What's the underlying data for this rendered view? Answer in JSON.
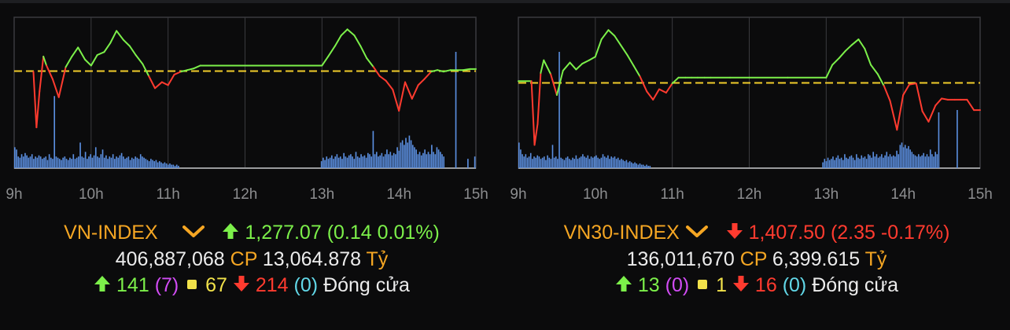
{
  "colors": {
    "up": "#7cf04a",
    "down": "#ff3b2f",
    "reference": "#f2cc2a",
    "volume": "#5b8fe0",
    "grid": "#3a3b3e",
    "name": "#f5a623"
  },
  "panels": [
    {
      "index_name": "VN-INDEX",
      "dropdown_icon": "chevron-down-icon",
      "change_direction": "up",
      "price": "1,277.07",
      "change": "(0.14 0.01%)",
      "volume": "406,887,068",
      "volume_unit": "CP",
      "value": "13,064.878",
      "value_unit": "Tỷ",
      "advancers": "141",
      "ceiling": "(7)",
      "unchanged": "67",
      "decliners": "214",
      "floor": "(0)",
      "status": "Đóng cửa"
    },
    {
      "index_name": "VN30-INDEX",
      "dropdown_icon": "chevron-down-icon",
      "change_direction": "down",
      "price": "1,407.50",
      "change": "(2.35 -0.17%)",
      "volume": "136,011,670",
      "volume_unit": "CP",
      "value": "6,399.615",
      "value_unit": "Tỷ",
      "advancers": "13",
      "ceiling": "(0)",
      "unchanged": "1",
      "decliners": "16",
      "floor": "(0)",
      "status": "Đóng cửa"
    }
  ],
  "chart_data": [
    {
      "type": "line",
      "x_ticks": [
        "9h",
        "10h",
        "11h",
        "12h",
        "13h",
        "14h",
        "15h"
      ],
      "xlim": [
        9,
        15
      ],
      "ylim": [
        1270.5,
        1280.5
      ],
      "reference": 1276.93,
      "grid": true,
      "series": [
        {
          "x": [
            9.25,
            9.29,
            9.33,
            9.38,
            9.42,
            9.5,
            9.58,
            9.67,
            9.75,
            9.83,
            9.92,
            10.0,
            10.08,
            10.17,
            10.25,
            10.33,
            10.42,
            10.5,
            10.58,
            10.67,
            10.75,
            10.83,
            10.92,
            11.0,
            11.08,
            11.17,
            11.25,
            11.33,
            11.42,
            11.5,
            11.75,
            12.0,
            12.5,
            13.0,
            13.08,
            13.17,
            13.25,
            13.33,
            13.42,
            13.5,
            13.58,
            13.67,
            13.75,
            13.83,
            13.92,
            14.0,
            14.08,
            14.17,
            14.25,
            14.33,
            14.42,
            14.5,
            14.58,
            14.67,
            14.75,
            14.83,
            14.92,
            15.0
          ],
          "y": [
            1276.9,
            1273.2,
            1275.6,
            1277.9,
            1277.3,
            1276.4,
            1275.2,
            1277.2,
            1277.9,
            1278.5,
            1277.7,
            1277.3,
            1278.0,
            1278.2,
            1278.8,
            1279.6,
            1279.0,
            1278.6,
            1278.0,
            1277.4,
            1276.6,
            1275.8,
            1276.2,
            1276.0,
            1276.7,
            1276.9,
            1277.0,
            1277.1,
            1277.3,
            1277.3,
            1277.3,
            1277.3,
            1277.3,
            1277.3,
            1277.9,
            1278.6,
            1279.3,
            1279.7,
            1279.3,
            1278.6,
            1277.8,
            1277.2,
            1276.6,
            1276.3,
            1275.7,
            1274.3,
            1276.2,
            1275.1,
            1276.0,
            1276.4,
            1276.9,
            1277.0,
            1276.9,
            1277.0,
            1277.0,
            1277.0,
            1277.07,
            1277.07
          ]
        }
      ],
      "volume_bars": [
        0.18,
        0.16,
        0.1,
        0.09,
        0.12,
        0.1,
        0.13,
        0.11,
        0.09,
        0.1,
        0.12,
        0.08,
        0.1,
        0.09,
        0.11,
        0.1,
        0.08,
        0.09,
        0.1,
        0.07,
        0.12,
        0.09,
        0.08,
        0.62,
        0.1,
        0.09,
        0.08,
        0.07,
        0.09,
        0.1,
        0.08,
        0.07,
        0.09,
        0.08,
        0.12,
        0.08,
        0.09,
        0.1,
        0.22,
        0.1,
        0.09,
        0.14,
        0.08,
        0.1,
        0.12,
        0.09,
        0.11,
        0.18,
        0.1,
        0.09,
        0.12,
        0.16,
        0.09,
        0.11,
        0.08,
        0.1,
        0.09,
        0.12,
        0.08,
        0.1,
        0.09,
        0.11,
        0.13,
        0.1,
        0.08,
        0.09,
        0.1,
        0.07,
        0.09,
        0.08,
        0.1,
        0.09,
        0.08,
        0.12,
        0.1,
        0.09,
        0.08,
        0.07,
        0.06,
        0.08,
        0.07,
        0.06,
        0.07,
        0.05,
        0.06,
        0.05,
        0.04,
        0.05,
        0.04,
        0.03,
        0.04,
        0.03,
        0.03,
        0.02,
        0.03,
        0.02,
        0,
        0,
        0,
        0,
        0,
        0,
        0,
        0,
        0,
        0,
        0,
        0,
        0,
        0,
        0,
        0,
        0,
        0,
        0,
        0,
        0,
        0,
        0,
        0,
        0,
        0,
        0,
        0,
        0,
        0,
        0,
        0,
        0,
        0,
        0,
        0,
        0,
        0,
        0,
        0,
        0,
        0,
        0,
        0,
        0,
        0,
        0,
        0,
        0,
        0,
        0,
        0,
        0,
        0,
        0,
        0,
        0,
        0,
        0,
        0,
        0,
        0,
        0,
        0,
        0,
        0,
        0,
        0,
        0,
        0,
        0,
        0,
        0,
        0,
        0,
        0,
        0,
        0,
        0,
        0,
        0,
        0,
        0.06,
        0.09,
        0.07,
        0.1,
        0.08,
        0.09,
        0.11,
        0.08,
        0.1,
        0.12,
        0.09,
        0.1,
        0.08,
        0.13,
        0.1,
        0.09,
        0.11,
        0.12,
        0.1,
        0.08,
        0.14,
        0.1,
        0.09,
        0.12,
        0.1,
        0.11,
        0.09,
        0.13,
        0.12,
        0.1,
        0.32,
        0.12,
        0.14,
        0.1,
        0.11,
        0.13,
        0.1,
        0.12,
        0.16,
        0.12,
        0.14,
        0.11,
        0.13,
        0.12,
        0.18,
        0.15,
        0.22,
        0.24,
        0.2,
        0.26,
        0.22,
        0.28,
        0.24,
        0.2,
        0.18,
        0.16,
        0.12,
        0.14,
        0.11,
        0.13,
        0.16,
        0.12,
        0.14,
        0.12,
        0.2,
        0.14,
        0.12,
        0.18,
        0.16,
        0.14,
        0.12,
        0.1,
        0.0,
        0.0,
        0.0,
        0.0,
        0.0,
        0.0,
        1.0,
        0.0,
        0.0,
        0.0,
        0.0,
        0.0,
        0.0,
        0.08,
        0.0,
        0.0,
        0.0,
        0.1
      ]
    },
    {
      "type": "line",
      "x_ticks": [
        "9h",
        "10h",
        "11h",
        "12h",
        "13h",
        "14h",
        "15h"
      ],
      "xlim": [
        9,
        15
      ],
      "ylim": [
        1402.5,
        1415.5
      ],
      "reference": 1409.85,
      "grid": true,
      "series": [
        {
          "x": [
            9.0,
            9.17,
            9.21,
            9.25,
            9.29,
            9.33,
            9.42,
            9.5,
            9.58,
            9.67,
            9.75,
            9.83,
            9.92,
            10.0,
            10.08,
            10.17,
            10.25,
            10.33,
            10.42,
            10.5,
            10.58,
            10.67,
            10.75,
            10.83,
            10.92,
            11.0,
            11.08,
            11.17,
            11.25,
            11.33,
            11.42,
            11.5,
            11.75,
            12.0,
            12.5,
            13.0,
            13.08,
            13.17,
            13.25,
            13.33,
            13.42,
            13.5,
            13.58,
            13.67,
            13.75,
            13.83,
            13.92,
            14.0,
            14.08,
            14.17,
            14.25,
            14.33,
            14.42,
            14.5,
            14.58,
            14.67,
            14.75,
            14.83,
            14.92,
            15.0
          ],
          "y": [
            1410.0,
            1410.0,
            1404.5,
            1406.3,
            1410.7,
            1411.8,
            1410.6,
            1408.8,
            1410.9,
            1411.6,
            1411.0,
            1411.5,
            1411.8,
            1412.1,
            1413.6,
            1414.4,
            1413.9,
            1413.1,
            1412.2,
            1411.3,
            1410.4,
            1409.1,
            1408.4,
            1409.3,
            1409.0,
            1409.8,
            1410.3,
            1410.3,
            1410.3,
            1410.3,
            1410.3,
            1410.3,
            1410.3,
            1410.3,
            1410.3,
            1410.3,
            1411.4,
            1412.0,
            1412.6,
            1413.1,
            1413.6,
            1412.8,
            1411.4,
            1410.6,
            1409.6,
            1408.3,
            1405.8,
            1408.8,
            1409.7,
            1409.8,
            1407.4,
            1406.5,
            1407.9,
            1408.5,
            1408.4,
            1408.4,
            1408.4,
            1408.4,
            1407.5,
            1407.5
          ]
        }
      ],
      "volume_bars": [
        0.22,
        0.16,
        0.12,
        0.1,
        0.12,
        0.09,
        0.1,
        0.13,
        0.08,
        0.1,
        0.09,
        0.11,
        0.1,
        0.08,
        0.09,
        0.1,
        0.07,
        0.11,
        0.09,
        0.08,
        0.2,
        0.09,
        0.1,
        0.08,
        1.0,
        0.09,
        0.08,
        0.07,
        0.09,
        0.1,
        0.08,
        0.07,
        0.09,
        0.08,
        0.11,
        0.08,
        0.09,
        0.1,
        0.12,
        0.1,
        0.09,
        0.11,
        0.08,
        0.1,
        0.09,
        0.1,
        0.11,
        0.09,
        0.08,
        0.09,
        0.12,
        0.1,
        0.09,
        0.11,
        0.08,
        0.1,
        0.09,
        0.1,
        0.08,
        0.09,
        0.07,
        0.08,
        0.07,
        0.06,
        0.07,
        0.05,
        0.06,
        0.05,
        0.04,
        0.05,
        0.04,
        0.03,
        0.04,
        0.03,
        0.03,
        0.02,
        0.03,
        0.02,
        0.02,
        0,
        0,
        0,
        0,
        0,
        0,
        0,
        0,
        0,
        0,
        0,
        0,
        0,
        0,
        0,
        0,
        0,
        0,
        0,
        0,
        0,
        0,
        0,
        0,
        0,
        0,
        0,
        0,
        0,
        0,
        0,
        0,
        0,
        0,
        0,
        0,
        0,
        0,
        0,
        0,
        0,
        0,
        0,
        0,
        0,
        0,
        0,
        0,
        0,
        0,
        0,
        0,
        0,
        0,
        0,
        0,
        0,
        0,
        0,
        0,
        0,
        0,
        0,
        0,
        0,
        0,
        0,
        0,
        0,
        0,
        0,
        0,
        0,
        0,
        0,
        0,
        0,
        0,
        0,
        0,
        0,
        0,
        0,
        0,
        0,
        0,
        0,
        0,
        0,
        0,
        0,
        0,
        0,
        0,
        0,
        0,
        0,
        0,
        0,
        0,
        0,
        0,
        0.05,
        0.08,
        0.06,
        0.09,
        0.07,
        0.08,
        0.1,
        0.07,
        0.09,
        0.11,
        0.08,
        0.09,
        0.07,
        0.12,
        0.09,
        0.08,
        0.1,
        0.11,
        0.09,
        0.07,
        0.12,
        0.09,
        0.08,
        0.11,
        0.09,
        0.1,
        0.08,
        0.12,
        0.11,
        0.09,
        0.14,
        0.1,
        0.12,
        0.09,
        0.1,
        0.12,
        0.09,
        0.11,
        0.14,
        0.1,
        0.12,
        0.1,
        0.11,
        0.1,
        0.15,
        0.12,
        0.2,
        0.22,
        0.18,
        0.2,
        0.17,
        0.19,
        0.16,
        0.14,
        0.12,
        0.11,
        0.1,
        0.12,
        0.1,
        0.11,
        0.13,
        0.1,
        0.12,
        0.1,
        0.16,
        0.12,
        0.1,
        0.14,
        0.12,
        0.48,
        0.0,
        0.0,
        0.0,
        0.0,
        0.0,
        0.0,
        0.0,
        0.0,
        0.0,
        0.0,
        0.5,
        0.0,
        0.0,
        0.0,
        0.0,
        0.0,
        0.0,
        0.0,
        0.0,
        0.0,
        0.0,
        0.0,
        0.0,
        0.0
      ]
    }
  ]
}
